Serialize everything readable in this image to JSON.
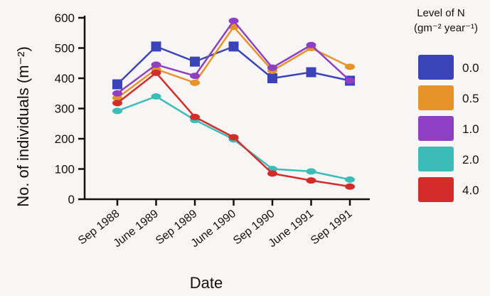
{
  "chart_data": {
    "type": "line",
    "title": "",
    "xlabel": "Date",
    "ylabel": "No. of individuals (m⁻²)",
    "categories": [
      "Sep 1988",
      "June 1989",
      "Sep 1989",
      "June 1990",
      "Sep 1990",
      "June 1991",
      "Sep 1991"
    ],
    "ylim": [
      0,
      600
    ],
    "yticks": [
      0,
      100,
      200,
      300,
      400,
      500,
      600
    ],
    "grid": false,
    "legend": {
      "title_line1": "Level of N",
      "title_line2": "(gm⁻² year⁻¹)",
      "placement": "right"
    },
    "series": [
      {
        "name": "0.0",
        "color": "#3b43b8",
        "marker": "square",
        "values": [
          380,
          505,
          455,
          505,
          400,
          420,
          392
        ]
      },
      {
        "name": "0.5",
        "color": "#e8922a",
        "marker": "circle",
        "values": [
          335,
          430,
          385,
          570,
          425,
          500,
          438
        ]
      },
      {
        "name": "1.0",
        "color": "#8e3fc4",
        "marker": "circle",
        "values": [
          350,
          445,
          408,
          590,
          435,
          510,
          392
        ]
      },
      {
        "name": "2.0",
        "color": "#3cbcb9",
        "marker": "circle",
        "values": [
          292,
          340,
          262,
          198,
          100,
          92,
          65
        ]
      },
      {
        "name": "4.0",
        "color": "#d42b2b",
        "marker": "circle",
        "values": [
          318,
          418,
          272,
          205,
          85,
          62,
          42
        ]
      }
    ]
  }
}
